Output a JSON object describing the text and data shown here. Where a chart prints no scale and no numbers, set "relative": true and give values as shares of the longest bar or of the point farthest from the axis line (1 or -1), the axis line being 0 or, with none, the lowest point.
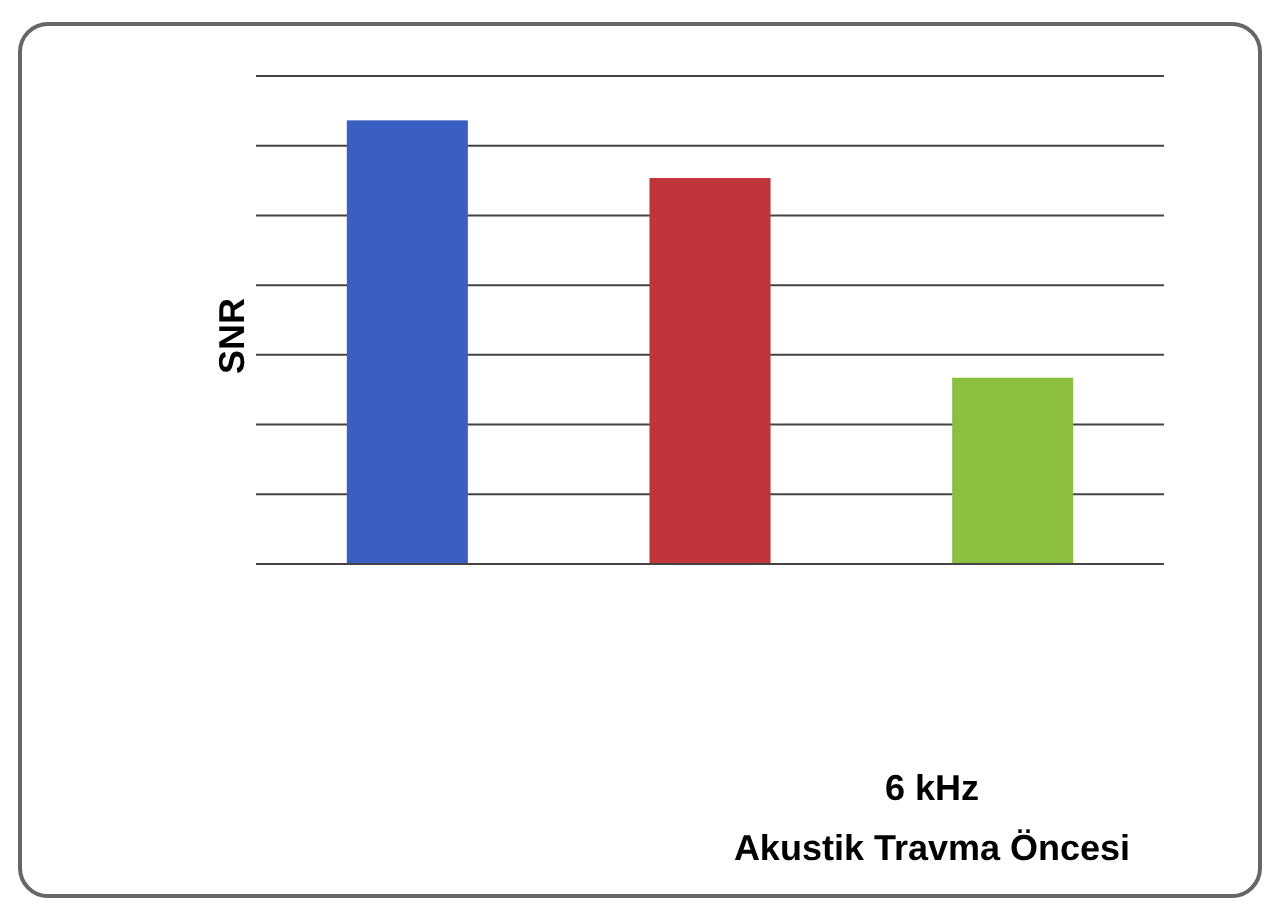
{
  "chart_data": {
    "type": "bar",
    "relative": true,
    "ylabel": "SNR",
    "annotations": [
      "6 kHz",
      "Akustik Travma Öncesi"
    ],
    "categories": [
      null,
      null,
      null
    ],
    "values": [
      1,
      0.87,
      0.42
    ],
    "colors": [
      "#3a5fc0",
      "#c0343c",
      "#8cbf3f"
    ],
    "grid": true
  }
}
